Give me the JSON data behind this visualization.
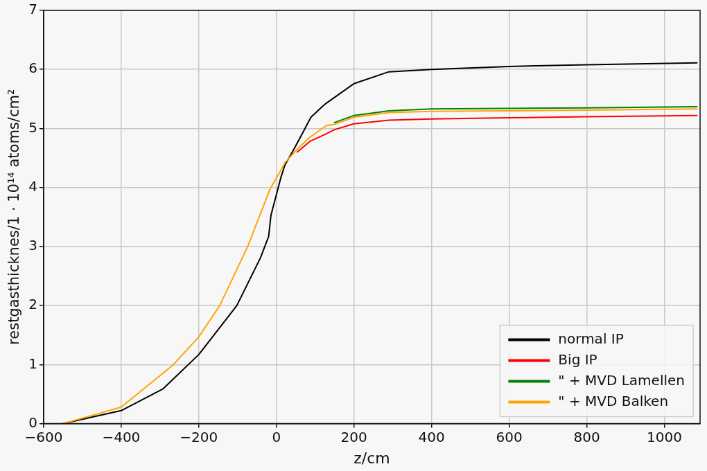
{
  "chart_data": {
    "type": "line",
    "xlabel": "z/cm",
    "ylabel": "restgasthicknes/1 · 10¹⁴ atoms/cm²",
    "xlim": [
      -600,
      1092
    ],
    "xticks": [
      -600,
      -400,
      -200,
      0,
      200,
      400,
      600,
      800,
      1000
    ],
    "ylim": [
      0,
      7
    ],
    "yticks": [
      0,
      1,
      2,
      3,
      4,
      5,
      6,
      7
    ],
    "grid": true,
    "legend": "bottom right",
    "marker": "none",
    "line_style": "solid",
    "series": [
      {
        "name": "normal IP",
        "color": "#000000",
        "x": [
          -550,
          -400,
          -292,
          -200,
          -102,
          -41,
          -20,
          -14,
          0,
          12,
          22,
          47,
          73,
          89,
          118,
          129,
          200,
          290,
          400,
          600,
          800,
          1084
        ],
        "values": [
          0,
          0.22,
          0.59,
          1.17,
          2.0,
          2.81,
          3.17,
          3.53,
          3.88,
          4.18,
          4.38,
          4.67,
          4.99,
          5.19,
          5.37,
          5.43,
          5.76,
          5.96,
          6.0,
          6.05,
          6.08,
          6.11
        ]
      },
      {
        "name": "Big IP",
        "color": "#ff0000",
        "x": [
          54,
          86,
          129,
          150,
          200,
          290,
          400,
          600,
          800,
          1084
        ],
        "values": [
          4.6,
          4.78,
          4.91,
          4.98,
          5.08,
          5.14,
          5.16,
          5.18,
          5.2,
          5.22
        ]
      },
      {
        "name": "\" + MVD Lamellen",
        "color": "#008000",
        "x": [
          150,
          200,
          290,
          400,
          600,
          800,
          1084
        ],
        "values": [
          5.1,
          5.22,
          5.3,
          5.33,
          5.34,
          5.35,
          5.37
        ]
      },
      {
        "name": "\" + MVD Balken",
        "color": "#ffa500",
        "x": [
          -550,
          -400,
          -267,
          -200,
          -146,
          -74,
          -16,
          0,
          22,
          54,
          86,
          129,
          150,
          200,
          290,
          400,
          600,
          800,
          1084
        ],
        "values": [
          0,
          0.28,
          0.99,
          1.47,
          2.0,
          3.0,
          3.98,
          4.16,
          4.42,
          4.65,
          4.85,
          5.05,
          5.07,
          5.19,
          5.27,
          5.29,
          5.3,
          5.31,
          5.33
        ]
      }
    ]
  }
}
